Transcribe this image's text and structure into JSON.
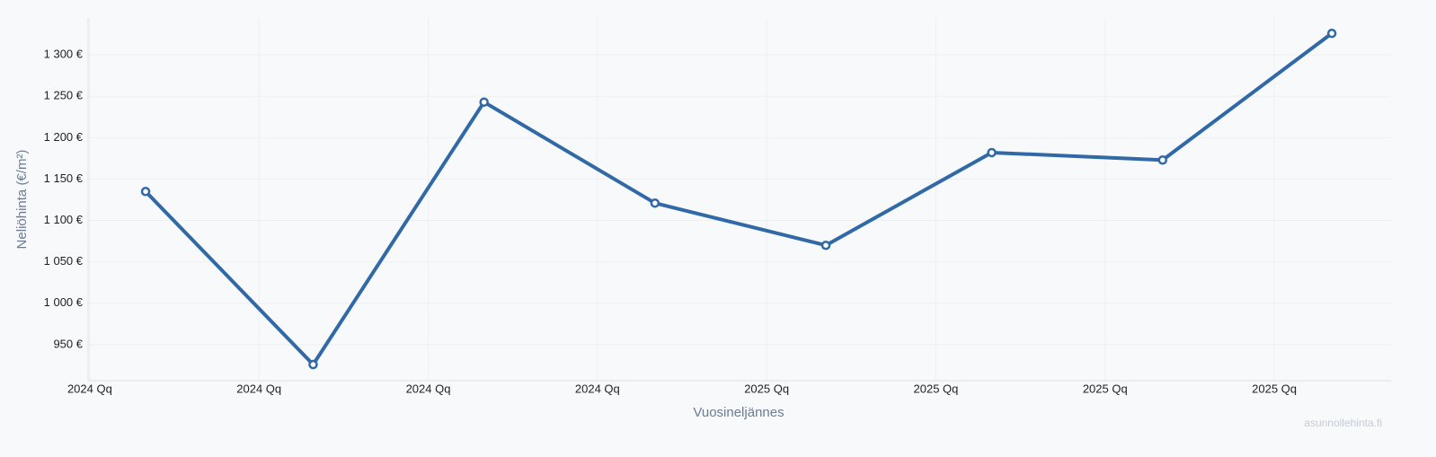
{
  "chart_data": {
    "type": "line",
    "x_label": "Vuosineljännes",
    "y_label": "Neliöhinta (€/m²)",
    "watermark": "asunnollehinta.fi",
    "x": [
      0.33,
      1.32,
      2.33,
      3.34,
      4.35,
      5.33,
      6.34,
      7.34
    ],
    "values": [
      1135,
      926,
      1243,
      1121,
      1070,
      1182,
      1173,
      1326
    ],
    "color": "#3069a6",
    "xlim": [
      -0.01,
      7.69
    ],
    "xticks": [
      {
        "value": 0,
        "label": "2024 Qq"
      },
      {
        "value": 1,
        "label": "2024 Qq"
      },
      {
        "value": 2,
        "label": "2024 Qq"
      },
      {
        "value": 3,
        "label": "2024 Qq"
      },
      {
        "value": 4,
        "label": "2025 Qq"
      },
      {
        "value": 5,
        "label": "2025 Qq"
      },
      {
        "value": 6,
        "label": "2025 Qq"
      },
      {
        "value": 7,
        "label": "2025 Qq"
      }
    ],
    "ylim": [
      906.5,
      1344.6
    ],
    "yticks": [
      {
        "value": 950,
        "label": "950 €"
      },
      {
        "value": 1000,
        "label": "1 000 €"
      },
      {
        "value": 1050,
        "label": "1 050 €"
      },
      {
        "value": 1100,
        "label": "1 100 €"
      },
      {
        "value": 1150,
        "label": "1 150 €"
      },
      {
        "value": 1200,
        "label": "1 200 €"
      },
      {
        "value": 1250,
        "label": "1 250 €"
      },
      {
        "value": 1300,
        "label": "1 300 €"
      }
    ],
    "grid": true
  }
}
